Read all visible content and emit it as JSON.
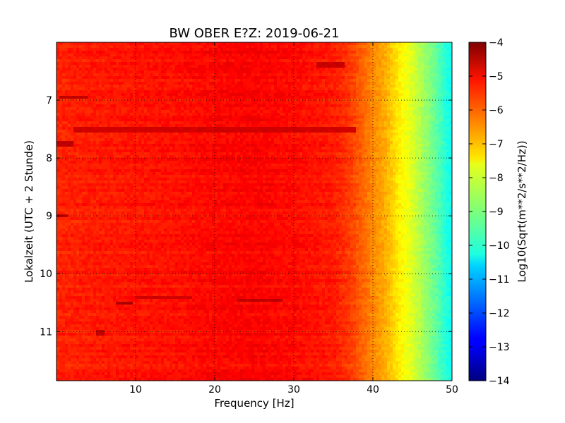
{
  "chart_data": {
    "type": "heatmap",
    "title": "BW OBER E?Z: 2019-06-21",
    "xlabel": "Frequency [Hz]",
    "ylabel": "Lokalzeit (UTC + 2 Stunde)",
    "xlim": [
      0,
      50
    ],
    "ylim": [
      11.85,
      6.0
    ],
    "y_inverted": true,
    "x_ticks": [
      10,
      20,
      30,
      40,
      50
    ],
    "x_tick_labels": [
      "10",
      "20",
      "30",
      "40",
      "50"
    ],
    "y_ticks": [
      7,
      8,
      9,
      10,
      11
    ],
    "y_tick_labels": [
      "7",
      "8",
      "9",
      "10",
      "11"
    ],
    "grid": true,
    "colormap": "jet",
    "colorbar": {
      "label": "Log10(Sqrt(m**2/s**2/Hz))",
      "range": [
        -14,
        -4
      ],
      "ticks": [
        -4,
        -5,
        -6,
        -7,
        -8,
        -9,
        -10,
        -11,
        -12,
        -13,
        -14
      ],
      "tick_labels": [
        "−4",
        "−5",
        "−6",
        "−7",
        "−8",
        "−9",
        "−10",
        "−11",
        "−12",
        "−13",
        "−14"
      ]
    },
    "frequency_profile": {
      "frequency_hz": [
        0,
        5,
        10,
        15,
        20,
        25,
        30,
        35,
        37,
        39,
        40,
        41,
        42,
        43,
        44,
        45,
        46,
        47,
        48,
        49,
        50
      ],
      "log10_amplitude": [
        -5.6,
        -5.5,
        -5.45,
        -5.4,
        -5.3,
        -5.25,
        -5.35,
        -5.5,
        -5.8,
        -6.3,
        -6.6,
        -6.8,
        -7.1,
        -7.5,
        -7.8,
        -8.1,
        -8.5,
        -8.9,
        -9.3,
        -9.8,
        -10.2
      ]
    },
    "features": [
      {
        "time": 6.95,
        "freq_from": 0.5,
        "freq_to": 4,
        "log10_amplitude": -4.6
      },
      {
        "time": 7.52,
        "freq_from": 2,
        "freq_to": 38,
        "log10_amplitude": -4.8
      },
      {
        "time": 7.75,
        "freq_from": 0,
        "freq_to": 2,
        "log10_amplitude": -4.6
      },
      {
        "time": 8.99,
        "freq_from": 0,
        "freq_to": 1.5,
        "log10_amplitude": -4.6
      },
      {
        "time": 10.42,
        "freq_from": 10,
        "freq_to": 17,
        "log10_amplitude": -4.8
      },
      {
        "time": 10.47,
        "freq_from": 23,
        "freq_to": 28.5,
        "log10_amplitude": -4.6
      },
      {
        "time": 10.5,
        "freq_from": 7.5,
        "freq_to": 9.5,
        "log10_amplitude": -4.5
      },
      {
        "time": 6.4,
        "freq_from": 33,
        "freq_to": 36.5,
        "log10_amplitude": -4.7
      },
      {
        "time": 11.02,
        "freq_from": 5,
        "freq_to": 6,
        "log10_amplitude": -4.6
      }
    ]
  }
}
